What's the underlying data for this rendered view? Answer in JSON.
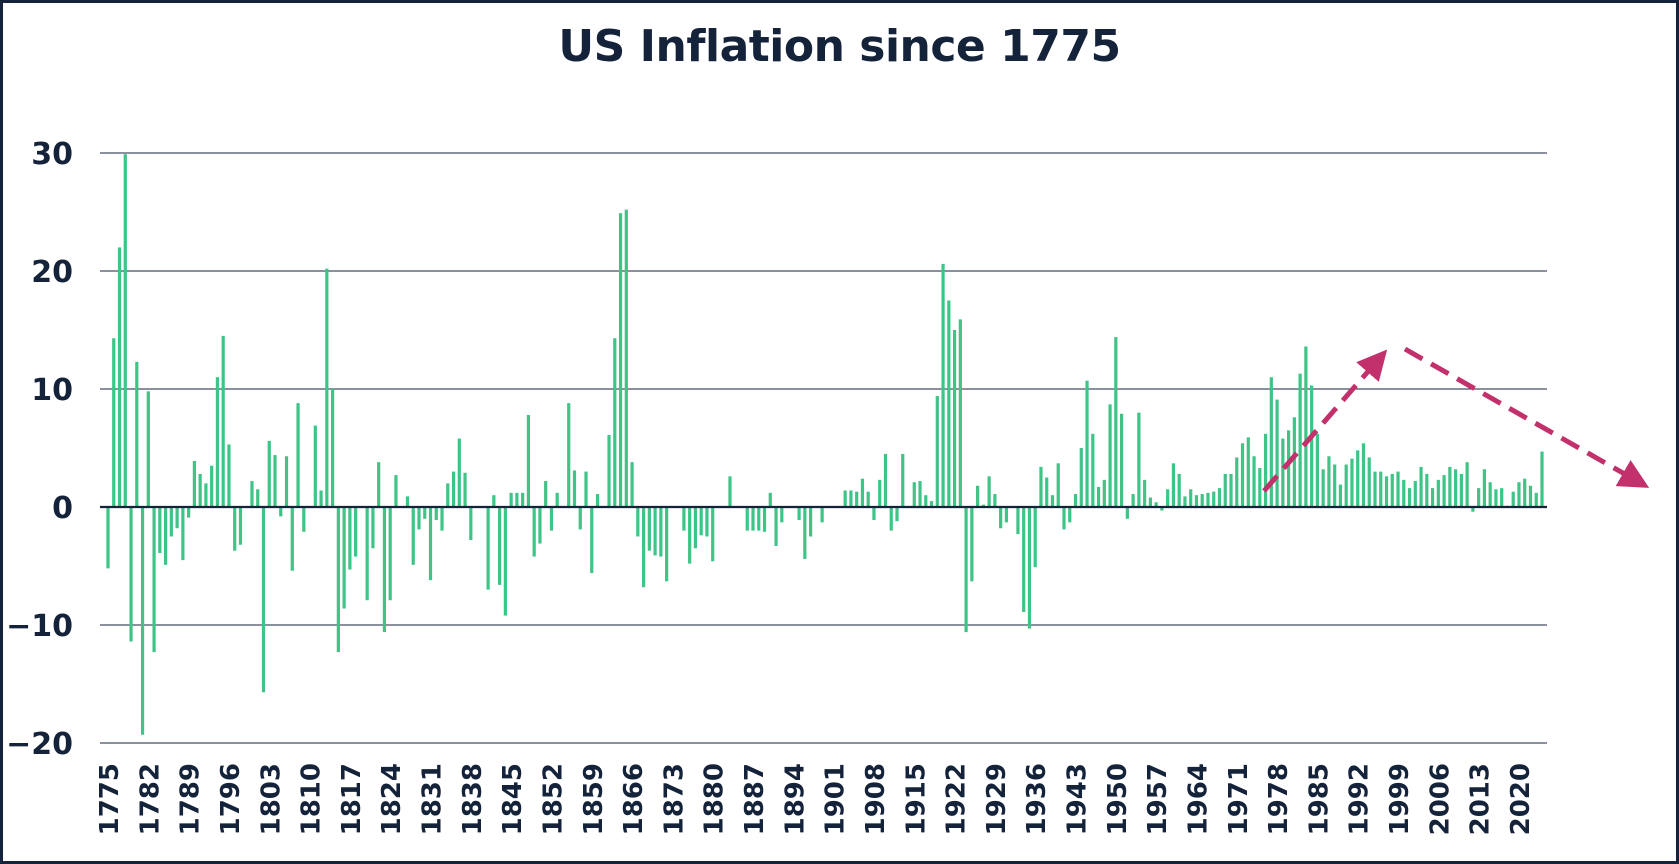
{
  "chart_data": {
    "type": "bar",
    "title": "US Inflation since 1775",
    "xlabel": "",
    "ylabel": "",
    "ylim": [
      -20,
      30
    ],
    "yticks": [
      -20,
      -10,
      0,
      10,
      20,
      30
    ],
    "x_tick_labels": [
      "1775",
      "1782",
      "1789",
      "1796",
      "1803",
      "1810",
      "1817",
      "1824",
      "1831",
      "1838",
      "1845",
      "1852",
      "1859",
      "1866",
      "1873",
      "1880",
      "1887",
      "1894",
      "1901",
      "1908",
      "1915",
      "1922",
      "1929",
      "1936",
      "1943",
      "1950",
      "1957",
      "1964",
      "1971",
      "1978",
      "1985",
      "1992",
      "1999",
      "2006",
      "2013",
      "2020"
    ],
    "grid": "horizontal",
    "bar_color": "#3ec486",
    "start_year": 1775,
    "values": [
      -5.2,
      14.3,
      22.0,
      29.9,
      -11.4,
      12.3,
      -19.3,
      9.8,
      -12.3,
      -3.9,
      -4.9,
      -2.5,
      -1.8,
      -4.5,
      -0.9,
      3.9,
      2.8,
      2.0,
      3.5,
      11.0,
      14.5,
      5.3,
      -3.7,
      -3.2,
      0.0,
      2.2,
      1.5,
      -15.7,
      5.6,
      4.4,
      -0.8,
      4.3,
      -5.4,
      8.8,
      -2.1,
      0.0,
      6.9,
      1.4,
      20.2,
      10.0,
      -12.3,
      -8.6,
      -5.3,
      -4.2,
      0.0,
      -7.9,
      -3.5,
      3.8,
      -10.6,
      -7.9,
      2.7,
      0.0,
      0.9,
      -4.9,
      -1.9,
      -1.0,
      -6.2,
      -1.1,
      -2.0,
      2.0,
      3.0,
      5.8,
      2.9,
      -2.8,
      0.0,
      0.0,
      -7.0,
      1.0,
      -6.6,
      -9.2,
      1.2,
      1.2,
      1.2,
      7.8,
      -4.2,
      -3.1,
      2.2,
      -2.0,
      1.2,
      0.0,
      8.8,
      3.1,
      -1.9,
      3.0,
      -5.6,
      1.1,
      0.0,
      6.1,
      14.3,
      24.9,
      25.2,
      3.8,
      -2.5,
      -6.8,
      -3.7,
      -4.1,
      -4.2,
      -6.3,
      0.0,
      0.0,
      -2.0,
      -4.8,
      -3.5,
      -2.4,
      -2.5,
      -4.6,
      0.0,
      0.0,
      2.6,
      0.0,
      0.0,
      -2.0,
      -2.0,
      -2.0,
      -2.1,
      1.2,
      -3.3,
      -1.3,
      0.0,
      0.0,
      -1.1,
      -4.4,
      -2.5,
      0.0,
      -1.3,
      0.0,
      0.0,
      0.0,
      1.4,
      1.4,
      1.3,
      2.4,
      1.3,
      -1.1,
      2.3,
      4.5,
      -2.0,
      -1.2,
      4.5,
      0.0,
      2.1,
      2.2,
      1.0,
      0.5,
      9.4,
      20.6,
      17.5,
      15.0,
      15.9,
      -10.6,
      -6.3,
      1.8,
      0.2,
      2.6,
      1.1,
      -1.8,
      -1.3,
      0.0,
      -2.3,
      -8.9,
      -10.3,
      -5.1,
      3.4,
      2.5,
      1.0,
      3.7,
      -1.9,
      -1.3,
      1.1,
      5.0,
      10.7,
      6.2,
      1.7,
      2.3,
      8.7,
      14.4,
      7.9,
      -1.0,
      1.1,
      8.0,
      2.3,
      0.8,
      0.4,
      -0.3,
      1.5,
      3.7,
      2.8,
      0.9,
      1.5,
      1.0,
      1.1,
      1.2,
      1.3,
      1.6,
      2.8,
      2.8,
      4.2,
      5.4,
      5.9,
      4.3,
      3.3,
      6.2,
      11.0,
      9.1,
      5.8,
      6.5,
      7.6,
      11.3,
      13.6,
      10.3,
      6.2,
      3.2,
      4.3,
      3.6,
      1.9,
      3.6,
      4.1,
      4.8,
      5.4,
      4.2,
      3.0,
      3.0,
      2.6,
      2.8,
      3.0,
      2.3,
      1.6,
      2.2,
      3.4,
      2.8,
      1.6,
      2.3,
      2.7,
      3.4,
      3.2,
      2.8,
      3.8,
      -0.4,
      1.6,
      3.2,
      2.1,
      1.5,
      1.6,
      0.1,
      1.3,
      2.1,
      2.4,
      1.8,
      1.2,
      4.7
    ],
    "annotations": [
      {
        "type": "dashed-arrow",
        "color": "#c2316b",
        "from": [
          1775,
          0
        ],
        "to": [
          1775,
          0
        ]
      }
    ]
  }
}
